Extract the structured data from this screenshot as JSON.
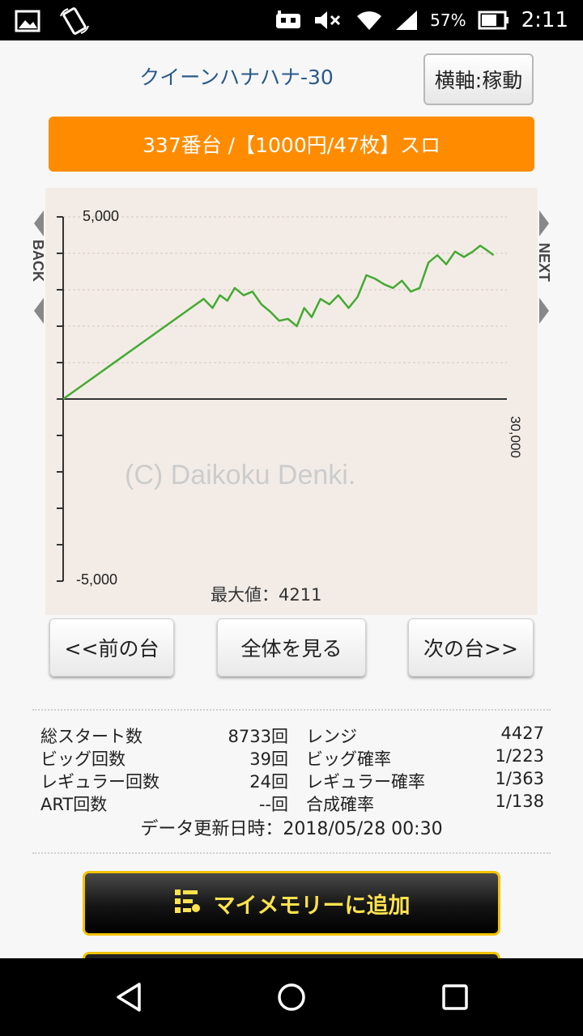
{
  "status_bar": {
    "battery_pct": "57%",
    "time": "2:11",
    "icons": [
      "gallery-icon",
      "rotate-icon",
      "robot-icon",
      "mute-icon",
      "wifi-icon",
      "signal-icon",
      "battery-icon"
    ]
  },
  "header": {
    "title": "クイーンハナハナ-30",
    "axis_button": "横軸:稼動"
  },
  "banner": "337番台 /【1000円/47枚】スロ",
  "graph": {
    "back_label": "BACK",
    "next_label": "NEXT",
    "watermark": "(C) Daikoku Denki.",
    "max_label": "最大値：4211",
    "y_top_label": "5,000",
    "y_bottom_label": "-5,000",
    "x_right_label": "30,000",
    "line_color": "#44aa33"
  },
  "chart_data": {
    "type": "line",
    "xlim": [
      0,
      30000
    ],
    "ylim": [
      -5000,
      5000
    ],
    "x": [
      0,
      9500,
      10100,
      10600,
      11100,
      11600,
      12200,
      12800,
      13400,
      14000,
      14600,
      15200,
      15800,
      16300,
      16800,
      17400,
      18000,
      18600,
      19300,
      19900,
      20500,
      21100,
      21700,
      22300,
      22900,
      23500,
      24100,
      24700,
      25300,
      25900,
      26500,
      27100,
      27700,
      28200,
      28600,
      29100
    ],
    "y": [
      0,
      2750,
      2500,
      2850,
      2700,
      3050,
      2850,
      2950,
      2600,
      2400,
      2150,
      2200,
      2000,
      2500,
      2250,
      2750,
      2600,
      2850,
      2500,
      2800,
      3400,
      3300,
      3150,
      3050,
      3250,
      2950,
      3050,
      3750,
      3950,
      3700,
      4050,
      3900,
      4050,
      4211,
      4100,
      3950
    ],
    "max_value": 4211,
    "grid": true
  },
  "buttons": {
    "prev": "<<前の台",
    "all": "全体を見る",
    "next": "次の台>>"
  },
  "stats": {
    "rows": [
      {
        "label": "総スタート数",
        "value": "8733回",
        "label2": "レンジ",
        "value2": "4427"
      },
      {
        "label": "ビッグ回数",
        "value": "39回",
        "label2": "ビッグ確率",
        "value2": "1/223"
      },
      {
        "label": "レギュラー回数",
        "value": "24回",
        "label2": "レギュラー確率",
        "value2": "1/363"
      },
      {
        "label": "ART回数",
        "value": "--回",
        "label2": "合成確率",
        "value2": "1/138"
      }
    ],
    "update": "データ更新日時：2018/05/28 00:30"
  },
  "memory_button": "マイメモリーに追加"
}
